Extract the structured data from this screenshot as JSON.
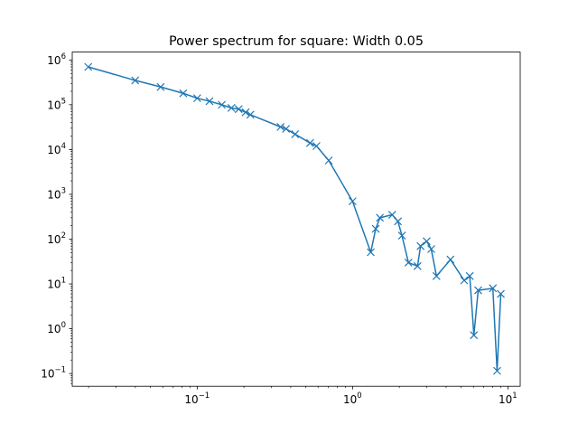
{
  "chart_data": {
    "type": "line",
    "title": "Power spectrum for square: Width 0.05",
    "xlabel": "",
    "ylabel": "",
    "xscale": "log",
    "yscale": "log",
    "xlim": [
      0.0157,
      12.0
    ],
    "ylim": [
      0.052,
      1500000
    ],
    "grid": false,
    "line_color": "#1f77b4",
    "marker": "x",
    "x_ticks": [
      {
        "value": 0.1,
        "base": "10",
        "exp": "−1"
      },
      {
        "value": 1,
        "base": "10",
        "exp": "0"
      },
      {
        "value": 10,
        "base": "10",
        "exp": "1"
      }
    ],
    "y_ticks": [
      {
        "value": 0.1,
        "base": "10",
        "exp": "−1"
      },
      {
        "value": 1,
        "base": "10",
        "exp": "0"
      },
      {
        "value": 10,
        "base": "10",
        "exp": "1"
      },
      {
        "value": 100,
        "base": "10",
        "exp": "2"
      },
      {
        "value": 1000,
        "base": "10",
        "exp": "3"
      },
      {
        "value": 10000,
        "base": "10",
        "exp": "4"
      },
      {
        "value": 100000,
        "base": "10",
        "exp": "5"
      },
      {
        "value": 1000000,
        "base": "10",
        "exp": "6"
      }
    ],
    "series": [
      {
        "x": [
          0.0199,
          0.0399,
          0.0582,
          0.0813,
          0.1,
          0.12,
          0.144,
          0.166,
          0.185,
          0.205,
          0.22,
          0.344,
          0.373,
          0.427,
          0.533,
          0.586,
          0.703,
          1.0,
          1.31,
          1.41,
          1.5,
          1.8,
          1.96,
          2.08,
          2.29,
          2.62,
          2.74,
          3.0,
          3.21,
          3.47,
          4.27,
          5.23,
          5.68,
          6.04,
          6.44,
          8.0,
          8.52,
          9.0
        ],
        "y": [
          700000,
          350000,
          250000,
          180000,
          140000,
          120000,
          100000,
          85000,
          80000,
          68000,
          60000,
          32000,
          29000,
          22000,
          14000,
          12000,
          5700,
          700,
          51,
          170,
          300,
          350,
          250,
          120,
          30,
          25,
          70,
          90,
          60,
          15,
          35,
          12,
          15,
          0.72,
          7.2,
          8,
          0.115,
          6
        ]
      }
    ]
  }
}
